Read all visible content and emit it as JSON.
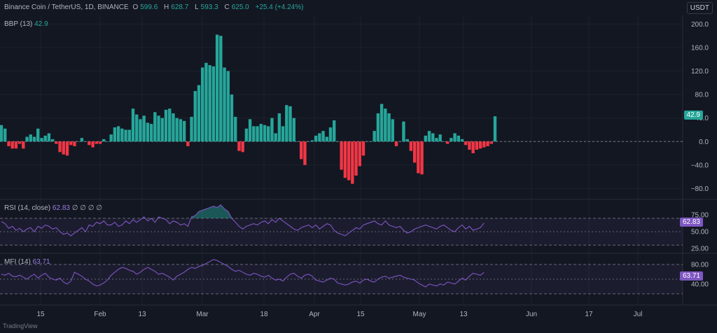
{
  "header": {
    "symbol": "Binance Coin / TetherUS, 1D, BINANCE",
    "open_label": "O",
    "open": "599.6",
    "high_label": "H",
    "high": "628.7",
    "low_label": "L",
    "low": "593.3",
    "close_label": "C",
    "close": "625.0",
    "change": "+25.4 (+4.24%)"
  },
  "currency": "USDT",
  "footer": {
    "brand": "TradingView"
  },
  "colors": {
    "background": "#131722",
    "up": "#26a69a",
    "down": "#f23645",
    "line": "#7e57c2"
  },
  "chart_data": [
    {
      "type": "bar",
      "title": "BBP (13)",
      "current_value": "42.9",
      "ylim": [
        -95,
        210
      ],
      "yticks": [
        "200.0",
        "160.0",
        "120.0",
        "80.0",
        "40.0",
        "0.0",
        "−40.0",
        "−80.0"
      ],
      "ytick_values": [
        200,
        160,
        120,
        80,
        40,
        0,
        -40,
        -80
      ],
      "values": [
        28,
        22,
        -8,
        -12,
        -12,
        -4,
        -12,
        8,
        12,
        8,
        22,
        6,
        10,
        14,
        4,
        -4,
        -18,
        -22,
        -24,
        -6,
        -8,
        0,
        6,
        0,
        -6,
        -10,
        -4,
        -4,
        4,
        0,
        12,
        24,
        26,
        22,
        20,
        20,
        56,
        46,
        38,
        44,
        32,
        30,
        50,
        44,
        40,
        54,
        56,
        48,
        40,
        38,
        35,
        -8,
        42,
        86,
        96,
        126,
        134,
        130,
        128,
        182,
        180,
        126,
        120,
        80,
        42,
        -16,
        -18,
        22,
        38,
        26,
        26,
        30,
        28,
        26,
        40,
        14,
        48,
        26,
        62,
        60,
        40,
        0,
        -30,
        -40,
        0,
        2,
        10,
        14,
        18,
        8,
        24,
        36,
        0,
        -48,
        -62,
        -66,
        -72,
        -58,
        -42,
        -24,
        0,
        0,
        18,
        48,
        64,
        56,
        48,
        38,
        -8,
        0,
        34,
        4,
        -16,
        -36,
        -54,
        -56,
        10,
        18,
        14,
        6,
        12,
        0,
        -4,
        6,
        14,
        10,
        4,
        -6,
        -14,
        -20,
        -14,
        -12,
        -10,
        -8,
        -4,
        42.9
      ]
    },
    {
      "type": "line",
      "title": "RSI (14, close)",
      "current_value": "62.83",
      "extra_values": [
        "∅",
        "∅",
        "∅",
        "∅"
      ],
      "ylim": [
        20,
        95
      ],
      "bands": [
        70,
        50,
        30
      ],
      "yticks": [
        "75.00",
        "50.00",
        "25.00"
      ],
      "ytick_values": [
        75,
        50,
        25
      ],
      "values": [
        65,
        62,
        55,
        58,
        52,
        55,
        50,
        54,
        56,
        50,
        58,
        55,
        60,
        58,
        54,
        56,
        50,
        46,
        48,
        44,
        48,
        52,
        56,
        50,
        60,
        58,
        64,
        62,
        66,
        60,
        60,
        64,
        58,
        60,
        66,
        62,
        68,
        64,
        68,
        72,
        66,
        70,
        64,
        72,
        70,
        68,
        62,
        66,
        64,
        60,
        62,
        58,
        72,
        74,
        80,
        82,
        84,
        86,
        88,
        86,
        90,
        84,
        80,
        70,
        64,
        58,
        54,
        58,
        60,
        62,
        60,
        64,
        66,
        62,
        68,
        64,
        70,
        66,
        62,
        58,
        54,
        52,
        56,
        58,
        60,
        56,
        60,
        54,
        58,
        62,
        60,
        52,
        48,
        46,
        44,
        48,
        52,
        56,
        54,
        60,
        62,
        64,
        66,
        62,
        60,
        66,
        60,
        58,
        56,
        58,
        52,
        48,
        50,
        54,
        56,
        58,
        60,
        58,
        56,
        54,
        58,
        60,
        56,
        52,
        50,
        56,
        60,
        54,
        58,
        52,
        54,
        56,
        62.83
      ]
    },
    {
      "type": "line",
      "title": "MFI (14)",
      "current_value": "63.71",
      "ylim": [
        0,
        100
      ],
      "bands": [
        80,
        50,
        20
      ],
      "yticks": [
        "80.00",
        "40.00"
      ],
      "ytick_values": [
        80,
        40
      ],
      "values": [
        60,
        58,
        62,
        56,
        55,
        58,
        54,
        50,
        56,
        60,
        52,
        58,
        62,
        54,
        50,
        48,
        52,
        44,
        40,
        46,
        64,
        60,
        56,
        50,
        46,
        40,
        36,
        38,
        42,
        48,
        58,
        64,
        70,
        74,
        72,
        68,
        66,
        60,
        64,
        70,
        74,
        70,
        66,
        60,
        62,
        58,
        54,
        48,
        56,
        60,
        64,
        70,
        74,
        72,
        76,
        78,
        82,
        86,
        90,
        88,
        84,
        80,
        76,
        70,
        66,
        68,
        64,
        60,
        58,
        62,
        60,
        56,
        54,
        58,
        52,
        48,
        50,
        46,
        54,
        60,
        62,
        56,
        52,
        58,
        60,
        56,
        48,
        46,
        44,
        48,
        52,
        50,
        42,
        40,
        38,
        40,
        44,
        46,
        42,
        48,
        50,
        46,
        44,
        50,
        54,
        56,
        52,
        54,
        56,
        58,
        54,
        52,
        50,
        48,
        42,
        38,
        34,
        40,
        38,
        36,
        40,
        38,
        44,
        42,
        40,
        46,
        52,
        48,
        56,
        62,
        60,
        58,
        63.71
      ]
    }
  ],
  "x_axis": {
    "labels": [
      "15",
      "Feb",
      "13",
      "Mar",
      "18",
      "Apr",
      "15",
      "May",
      "13",
      "Jun",
      "17",
      "Jul"
    ],
    "label_x": [
      58,
      143,
      203,
      289,
      377,
      449,
      515,
      599,
      662,
      759,
      841,
      911
    ]
  }
}
